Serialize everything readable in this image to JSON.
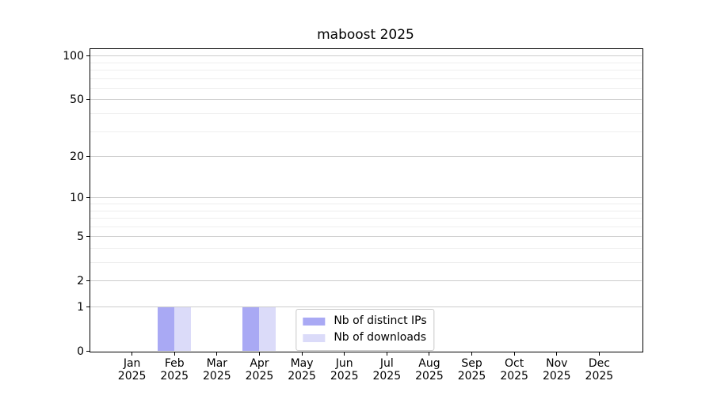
{
  "chart_data": {
    "type": "bar",
    "title": "maboost 2025",
    "categories": [
      "Jan 2025",
      "Feb 2025",
      "Mar 2025",
      "Apr 2025",
      "May 2025",
      "Jun 2025",
      "Jul 2025",
      "Aug 2025",
      "Sep 2025",
      "Oct 2025",
      "Nov 2025",
      "Dec 2025"
    ],
    "series": [
      {
        "name": "Nb of distinct IPs",
        "color": "#a9a9f4",
        "values": [
          0,
          1,
          0,
          1,
          0,
          0,
          0,
          0,
          0,
          0,
          0,
          0
        ]
      },
      {
        "name": "Nb of downloads",
        "color": "#dbdbf9",
        "values": [
          0,
          1,
          0,
          1,
          0,
          0,
          0,
          0,
          0,
          0,
          0,
          0
        ]
      }
    ],
    "xlabel": "",
    "ylabel": "",
    "yscale": "log1p",
    "y_major_ticks": [
      0,
      1,
      2,
      5,
      10,
      20,
      50,
      100
    ],
    "y_minor_ticks": [
      3,
      4,
      6,
      7,
      8,
      9,
      30,
      40,
      60,
      70,
      80,
      90
    ],
    "ylim": [
      0,
      113
    ],
    "grid": "horizontal-major-and-minor",
    "legend_position": "lower center",
    "colors": {
      "grid_major": "#cccccc",
      "grid_minor": "#eeeeee",
      "spine": "#000000",
      "text": "#000000",
      "legend_border": "#c9c9c9",
      "background": "#ffffff"
    }
  }
}
